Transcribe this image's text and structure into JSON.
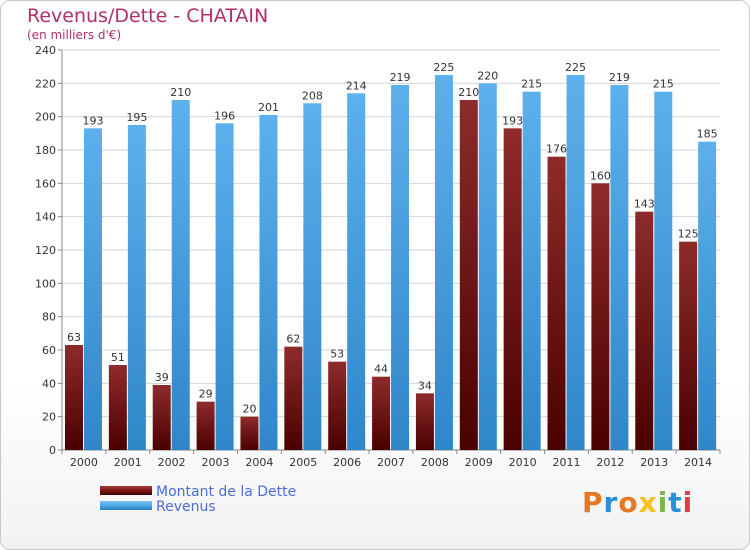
{
  "title": "Revenus/Dette - CHATAIN",
  "subtitle": "(en milliers d'€)",
  "logo_text": "Proxiti",
  "colors": {
    "title": "#b0306a",
    "dette": "#8b1a1a",
    "revenus": "#4aa3e6",
    "legend_text": "#4d6bdb"
  },
  "legend": [
    {
      "label": "Montant de la Dette",
      "color": "#7a1414"
    },
    {
      "label": "Revenus",
      "color": "#4aa3e6"
    }
  ],
  "chart_data": {
    "type": "bar",
    "categories": [
      "2000",
      "2001",
      "2002",
      "2003",
      "2004",
      "2005",
      "2006",
      "2007",
      "2008",
      "2009",
      "2010",
      "2011",
      "2012",
      "2013",
      "2014"
    ],
    "series": [
      {
        "name": "Montant de la Dette",
        "values": [
          63,
          51,
          39,
          29,
          20,
          62,
          53,
          44,
          34,
          210,
          193,
          176,
          160,
          143,
          125
        ]
      },
      {
        "name": "Revenus",
        "values": [
          193,
          195,
          210,
          196,
          201,
          208,
          214,
          219,
          225,
          220,
          215,
          225,
          219,
          215,
          185
        ]
      }
    ],
    "ylim": [
      0,
      240
    ],
    "yticks": [
      0,
      20,
      40,
      60,
      80,
      100,
      120,
      140,
      160,
      180,
      200,
      220,
      240
    ],
    "grid": true,
    "legend_position": "bottom-left"
  }
}
